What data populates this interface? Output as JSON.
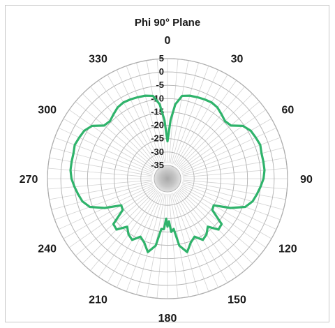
{
  "chart_data": {
    "type": "polar-line",
    "title": "Phi 90° Plane",
    "r_axis": {
      "ticks": [
        5,
        0,
        -5,
        -10,
        -15,
        -20,
        -25,
        -30,
        -35
      ],
      "min": -40,
      "max": 5
    },
    "theta_axis": {
      "labels": [
        "0",
        "30",
        "60",
        "90",
        "120",
        "150",
        "180",
        "210",
        "240",
        "270",
        "300",
        "330"
      ],
      "angles": [
        0,
        30,
        60,
        90,
        120,
        150,
        180,
        210,
        240,
        270,
        300,
        330
      ],
      "direction": "clockwise",
      "zero_at": "top"
    },
    "series": [
      {
        "color": "#2fb36b",
        "theta": [
          0,
          3,
          6,
          10,
          15,
          20,
          25,
          30,
          35,
          40,
          45,
          50,
          55,
          60,
          65,
          70,
          75,
          80,
          85,
          90,
          95,
          100,
          105,
          110,
          115,
          120,
          125,
          130,
          135,
          140,
          145,
          150,
          155,
          160,
          165,
          170,
          173,
          176,
          178,
          180,
          182,
          184,
          187,
          190,
          195,
          200,
          205,
          210,
          215,
          220,
          225,
          230,
          235,
          240,
          245,
          250,
          255,
          260,
          265,
          270,
          275,
          280,
          285,
          290,
          295,
          300,
          305,
          310,
          315,
          320,
          325,
          330,
          335,
          340,
          345,
          350,
          354,
          357,
          360
        ],
        "r": [
          -26,
          -18,
          -12,
          -8.5,
          -7.8,
          -7.5,
          -7.2,
          -7.0,
          -7.4,
          -8.5,
          -9.5,
          -9.0,
          -5.5,
          -4.0,
          -3.5,
          -3.0,
          -3.5,
          -3.5,
          -3.5,
          -4.0,
          -5.0,
          -6.0,
          -7.0,
          -9.0,
          -14.0,
          -20.0,
          -19.5,
          -13.5,
          -13.0,
          -16.5,
          -14.5,
          -13.5,
          -16.0,
          -14.5,
          -11.5,
          -14.5,
          -21,
          -20,
          -24,
          -22,
          -25,
          -21,
          -21,
          -14.5,
          -11.5,
          -14.5,
          -16.0,
          -13.5,
          -14.5,
          -16.5,
          -13.0,
          -13.5,
          -19.5,
          -20.0,
          -14.0,
          -9.0,
          -7.0,
          -6.0,
          -5.0,
          -4.0,
          -3.5,
          -3.5,
          -3.5,
          -3.0,
          -3.5,
          -4.0,
          -5.5,
          -9.0,
          -9.5,
          -8.5,
          -7.4,
          -7.0,
          -7.2,
          -7.5,
          -7.8,
          -8.5,
          -12,
          -18,
          -26
        ]
      }
    ],
    "grid": true,
    "legend": "none"
  }
}
